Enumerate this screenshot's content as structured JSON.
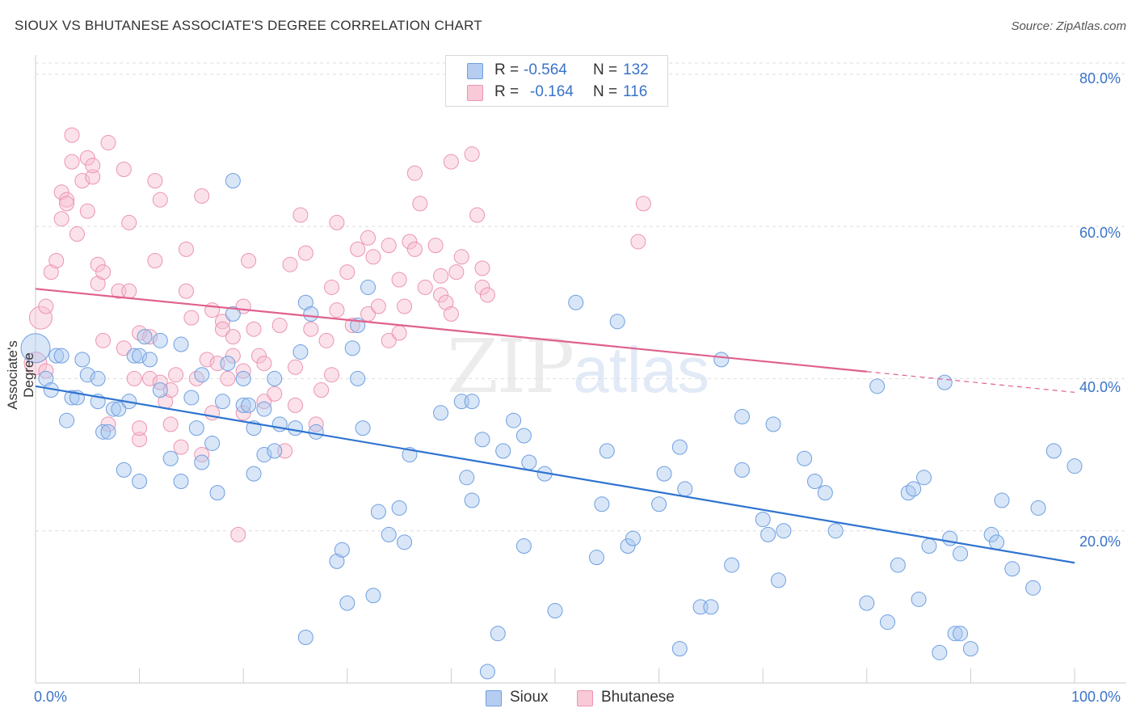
{
  "header": {
    "title": "SIOUX VS BHUTANESE ASSOCIATE'S DEGREE CORRELATION CHART",
    "source": "Source: ZipAtlas.com"
  },
  "legend_top": {
    "rows": [
      {
        "r_label": "R =",
        "r_value": "-0.564",
        "n_label": "N =",
        "n_value": "132"
      },
      {
        "r_label": "R =",
        "r_value": "-0.164",
        "n_label": "N =",
        "n_value": "116"
      }
    ]
  },
  "legend_bottom": {
    "items": [
      {
        "label": "Sioux"
      },
      {
        "label": "Bhutanese"
      }
    ]
  },
  "watermark": {
    "zip": "ZIP",
    "atlas": "atlas"
  },
  "colors": {
    "sioux_fill": "#a9c7ef",
    "sioux_stroke": "#6f9fe0",
    "sioux_line": "#2f74d0",
    "bhutanese_fill": "#f6bfd0",
    "bhutanese_stroke": "#ec94b1",
    "bhutanese_line": "#e0608e",
    "tick_text": "#3a73c9",
    "grid": "#dddddd"
  },
  "chart_data": {
    "type": "scatter",
    "title": "SIOUX VS BHUTANESE ASSOCIATE'S DEGREE CORRELATION CHART",
    "xlabel": "",
    "ylabel": "Associate's Degree",
    "xlim": [
      0,
      100
    ],
    "ylim": [
      0,
      82
    ],
    "x_tick_labels": [
      "0.0%",
      "100.0%"
    ],
    "y_ticks": [
      {
        "value": 20,
        "label": "20.0%"
      },
      {
        "value": 40,
        "label": "40.0%"
      },
      {
        "value": 60,
        "label": "60.0%"
      },
      {
        "value": 80,
        "label": "80.0%"
      }
    ],
    "grid": true,
    "series": [
      {
        "name": "Sioux",
        "R": -0.564,
        "N": 132,
        "trend": {
          "x0": 0,
          "y0": 39.0,
          "x1": 100,
          "y1": 15.8,
          "dashed_from": null
        },
        "points": [
          [
            0,
            44
          ],
          [
            1,
            40
          ],
          [
            1.5,
            38.5
          ],
          [
            2,
            43
          ],
          [
            2.5,
            43
          ],
          [
            3,
            34.5
          ],
          [
            3.5,
            37.5
          ],
          [
            4,
            37.5
          ],
          [
            4.5,
            42.5
          ],
          [
            5,
            40.5
          ],
          [
            6,
            40
          ],
          [
            6,
            37
          ],
          [
            6.5,
            33
          ],
          [
            7,
            33
          ],
          [
            7.5,
            36
          ],
          [
            8,
            36
          ],
          [
            8.5,
            28
          ],
          [
            9,
            37
          ],
          [
            9.5,
            43
          ],
          [
            10,
            43
          ],
          [
            10,
            26.5
          ],
          [
            10.5,
            45.5
          ],
          [
            11,
            42.5
          ],
          [
            12,
            38.5
          ],
          [
            12,
            45
          ],
          [
            13,
            29.5
          ],
          [
            14,
            44.5
          ],
          [
            14,
            26.5
          ],
          [
            15,
            37.5
          ],
          [
            15.5,
            33.5
          ],
          [
            16,
            29
          ],
          [
            16,
            40.5
          ],
          [
            17,
            31.5
          ],
          [
            17.5,
            25
          ],
          [
            18,
            37
          ],
          [
            18.5,
            42
          ],
          [
            19,
            48.5
          ],
          [
            19,
            66
          ],
          [
            20,
            36.5
          ],
          [
            20,
            40
          ],
          [
            20.5,
            36.5
          ],
          [
            21,
            33.5
          ],
          [
            21,
            27.5
          ],
          [
            22,
            36
          ],
          [
            22,
            30
          ],
          [
            23,
            40
          ],
          [
            23,
            30.5
          ],
          [
            23.5,
            34
          ],
          [
            25,
            33.5
          ],
          [
            25.5,
            43.5
          ],
          [
            26,
            50
          ],
          [
            26,
            6
          ],
          [
            26.5,
            48.5
          ],
          [
            27,
            33
          ],
          [
            29,
            16
          ],
          [
            29.5,
            17.5
          ],
          [
            30,
            10.5
          ],
          [
            30.5,
            44
          ],
          [
            31,
            47
          ],
          [
            31,
            40
          ],
          [
            31.5,
            33.5
          ],
          [
            32,
            52
          ],
          [
            32.5,
            11.5
          ],
          [
            33,
            22.5
          ],
          [
            34,
            19.5
          ],
          [
            35,
            23
          ],
          [
            35.5,
            18.5
          ],
          [
            36,
            30
          ],
          [
            39,
            35.5
          ],
          [
            41,
            37
          ],
          [
            41.5,
            27
          ],
          [
            42,
            37
          ],
          [
            42,
            24
          ],
          [
            43,
            32
          ],
          [
            43.5,
            1.5
          ],
          [
            44.5,
            6.5
          ],
          [
            45,
            30.5
          ],
          [
            46,
            34.5
          ],
          [
            47,
            32.5
          ],
          [
            47,
            18
          ],
          [
            47.5,
            29
          ],
          [
            49,
            27.5
          ],
          [
            50,
            9.5
          ],
          [
            52,
            50
          ],
          [
            54,
            16.5
          ],
          [
            54.5,
            23.5
          ],
          [
            55,
            30.5
          ],
          [
            56,
            47.5
          ],
          [
            57,
            18
          ],
          [
            57.5,
            19
          ],
          [
            60,
            23.5
          ],
          [
            60.5,
            27.5
          ],
          [
            62,
            31
          ],
          [
            62.5,
            25.5
          ],
          [
            62,
            4.5
          ],
          [
            64,
            10
          ],
          [
            65,
            10
          ],
          [
            66,
            42.5
          ],
          [
            67,
            15.5
          ],
          [
            68,
            35
          ],
          [
            68,
            28
          ],
          [
            70,
            21.5
          ],
          [
            70.5,
            19.5
          ],
          [
            71,
            34
          ],
          [
            71.5,
            13.5
          ],
          [
            72,
            20
          ],
          [
            74,
            29.5
          ],
          [
            75,
            26.5
          ],
          [
            76,
            25
          ],
          [
            77,
            20
          ],
          [
            80,
            10.5
          ],
          [
            81,
            39
          ],
          [
            82,
            8
          ],
          [
            83,
            15.5
          ],
          [
            84,
            25
          ],
          [
            84.5,
            25.5
          ],
          [
            85,
            11
          ],
          [
            85.5,
            27
          ],
          [
            86,
            18
          ],
          [
            87,
            4
          ],
          [
            87.5,
            39.5
          ],
          [
            88,
            19
          ],
          [
            88.5,
            6.5
          ],
          [
            89,
            6.5
          ],
          [
            89,
            17
          ],
          [
            90,
            4.5
          ],
          [
            92,
            19.5
          ],
          [
            92.5,
            18.5
          ],
          [
            93,
            24
          ],
          [
            94,
            15
          ],
          [
            96,
            12.5
          ],
          [
            96.5,
            23
          ],
          [
            98,
            30.5
          ],
          [
            100,
            28.5
          ]
        ]
      },
      {
        "name": "Bhutanese",
        "R": -0.164,
        "N": 116,
        "trend": {
          "x0": 0,
          "y0": 51.8,
          "x1": 100,
          "y1": 38.2,
          "dashed_from": 80
        },
        "points": [
          [
            0,
            42
          ],
          [
            0.5,
            48
          ],
          [
            1,
            49.5
          ],
          [
            1,
            41
          ],
          [
            1.5,
            54
          ],
          [
            2,
            55.5
          ],
          [
            2.5,
            61
          ],
          [
            2.5,
            64.5
          ],
          [
            3,
            63.5
          ],
          [
            3,
            63
          ],
          [
            3.5,
            68.5
          ],
          [
            3.5,
            72
          ],
          [
            4,
            59
          ],
          [
            4.5,
            66
          ],
          [
            5,
            69
          ],
          [
            5,
            62
          ],
          [
            5.5,
            66.5
          ],
          [
            5.5,
            68
          ],
          [
            6,
            55
          ],
          [
            6,
            52.5
          ],
          [
            6.5,
            45
          ],
          [
            6.5,
            54
          ],
          [
            7,
            34
          ],
          [
            7,
            71
          ],
          [
            8,
            51.5
          ],
          [
            8.5,
            67.5
          ],
          [
            8.5,
            44
          ],
          [
            9,
            60.5
          ],
          [
            9,
            51.5
          ],
          [
            9.5,
            40
          ],
          [
            10,
            32
          ],
          [
            10,
            46
          ],
          [
            10,
            33.5
          ],
          [
            11,
            45.5
          ],
          [
            11,
            40
          ],
          [
            11.5,
            66
          ],
          [
            11.5,
            55.5
          ],
          [
            12,
            63.5
          ],
          [
            12,
            39.5
          ],
          [
            12.5,
            37
          ],
          [
            13,
            34
          ],
          [
            13,
            38.5
          ],
          [
            13.5,
            40.5
          ],
          [
            14,
            31
          ],
          [
            14.5,
            51.5
          ],
          [
            14.5,
            57
          ],
          [
            15,
            48
          ],
          [
            15.5,
            40
          ],
          [
            16,
            64
          ],
          [
            16,
            30
          ],
          [
            16.5,
            42.5
          ],
          [
            17,
            49
          ],
          [
            17,
            35.5
          ],
          [
            17.5,
            42
          ],
          [
            18,
            47.5
          ],
          [
            18,
            46.5
          ],
          [
            18.5,
            40
          ],
          [
            19,
            43
          ],
          [
            19,
            45.5
          ],
          [
            19.5,
            19.5
          ],
          [
            20,
            49.5
          ],
          [
            20,
            41
          ],
          [
            20,
            35.5
          ],
          [
            20.5,
            55.5
          ],
          [
            21,
            46.5
          ],
          [
            21.5,
            43
          ],
          [
            22,
            42
          ],
          [
            22,
            37
          ],
          [
            23,
            38
          ],
          [
            23.5,
            47
          ],
          [
            24,
            30.5
          ],
          [
            24.5,
            55
          ],
          [
            25,
            36.5
          ],
          [
            25,
            41.5
          ],
          [
            25.5,
            61.5
          ],
          [
            26,
            56.5
          ],
          [
            26.5,
            46.5
          ],
          [
            27,
            34
          ],
          [
            27.5,
            38.5
          ],
          [
            28,
            45
          ],
          [
            28.5,
            52
          ],
          [
            28.5,
            40.5
          ],
          [
            29,
            49
          ],
          [
            29,
            60.5
          ],
          [
            30,
            54
          ],
          [
            30.5,
            47
          ],
          [
            31,
            57
          ],
          [
            32,
            58.5
          ],
          [
            32,
            48.5
          ],
          [
            32.5,
            56
          ],
          [
            33,
            49.5
          ],
          [
            34,
            57.5
          ],
          [
            34,
            45
          ],
          [
            35,
            46
          ],
          [
            35,
            53
          ],
          [
            35.5,
            49.5
          ],
          [
            36,
            58
          ],
          [
            36.5,
            57
          ],
          [
            36.5,
            67
          ],
          [
            37,
            63
          ],
          [
            37.5,
            52
          ],
          [
            38.5,
            57.5
          ],
          [
            39,
            53.5
          ],
          [
            39,
            51
          ],
          [
            39.5,
            50
          ],
          [
            40,
            48.5
          ],
          [
            40,
            68.5
          ],
          [
            40.5,
            54
          ],
          [
            41,
            56
          ],
          [
            42,
            69.5
          ],
          [
            42.5,
            61.5
          ],
          [
            43,
            52
          ],
          [
            43,
            54.5
          ],
          [
            43.5,
            51
          ],
          [
            58,
            58
          ],
          [
            58.5,
            63
          ]
        ]
      }
    ]
  }
}
